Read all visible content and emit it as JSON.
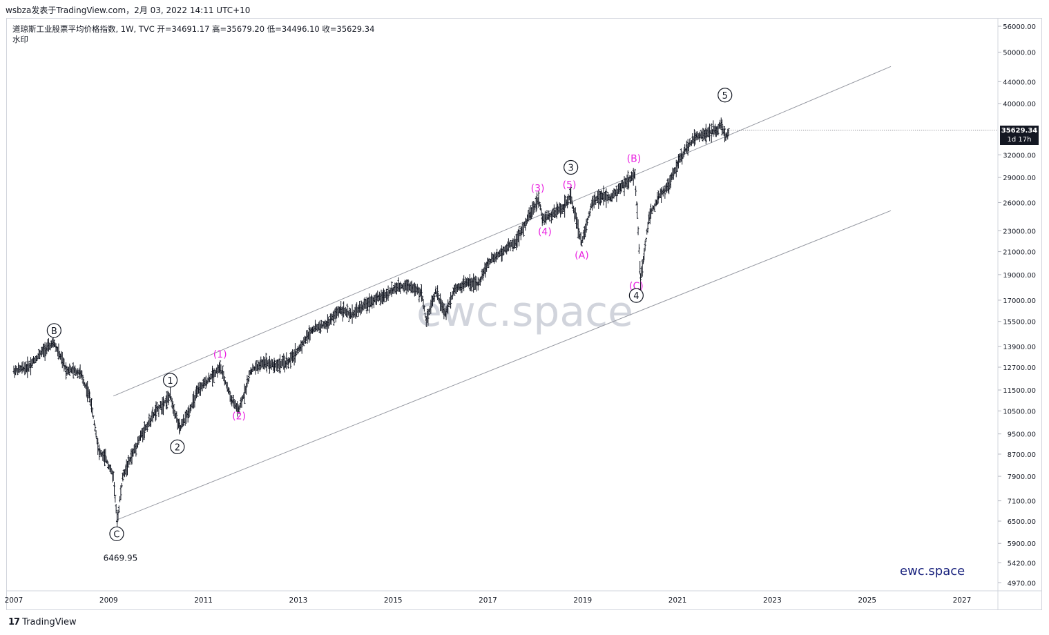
{
  "header": {
    "publish_line": "wsbza发表于TradingView.com，2月 03, 2022 14:11 UTC+10"
  },
  "legend": {
    "symbol_line": "道琼斯工业股票平均价格指数, 1W, TVC  开=34691.17  高=35679.20  低=34496.10  收=35629.34",
    "watermark_label": "水印"
  },
  "price_tag": {
    "price": "35629.34",
    "countdown": "1d 17h"
  },
  "brand": "ewc.space",
  "footer": {
    "logo": "17",
    "name": "TradingView"
  },
  "colors": {
    "candles": "#131722",
    "channel": "#9598a1",
    "magenta_labels": "#e91ee0",
    "black_labels": "#131722",
    "brand": "#1a237e",
    "watermark": "#d1d4dc"
  },
  "chart_data": {
    "type": "line",
    "title": "道琼斯工业股票平均价格指数",
    "xlabel": "",
    "ylabel": "",
    "y_scale": "log",
    "ylim": [
      4600,
      62000
    ],
    "x_ticks": [
      "2007",
      "2009",
      "2011",
      "2013",
      "2015",
      "2017",
      "2019",
      "2021",
      "2023",
      "2025",
      "2027"
    ],
    "y_ticks": [
      "56000.00",
      "50000.00",
      "44000.00",
      "40000.00",
      "32000.00",
      "29000.00",
      "26000.00",
      "23000.00",
      "21000.00",
      "19000.00",
      "17000.00",
      "15500.00",
      "13900.00",
      "12700.00",
      "11500.00",
      "10500.00",
      "9500.00",
      "8700.00",
      "7900.00",
      "7100.00",
      "6500.00",
      "5900.00",
      "5420.00",
      "4970.00"
    ],
    "watermark_text": "ewc.space",
    "series": [
      {
        "x": [
          2007.0,
          2007.3,
          2007.6,
          2007.85,
          2008.1,
          2008.4,
          2008.6,
          2008.8,
          2008.95,
          2009.1,
          2009.18,
          2009.3,
          2009.5,
          2009.7,
          2010.0,
          2010.3,
          2010.5,
          2010.7,
          2010.9,
          2011.2,
          2011.35,
          2011.6,
          2011.75,
          2012.0,
          2012.3,
          2012.5,
          2012.8,
          2013.0,
          2013.3,
          2013.6,
          2013.9,
          2014.1,
          2014.5,
          2014.8,
          2015.0,
          2015.3,
          2015.6,
          2015.7,
          2015.9,
          2016.1,
          2016.3,
          2016.6,
          2016.8,
          2017.0,
          2017.3,
          2017.6,
          2017.9,
          2018.07,
          2018.15,
          2018.3,
          2018.6,
          2018.75,
          2018.98,
          2019.2,
          2019.4,
          2019.6,
          2019.8,
          2020.1,
          2020.15,
          2020.22,
          2020.4,
          2020.6,
          2020.8,
          2021.0,
          2021.2,
          2021.4,
          2021.6,
          2021.8,
          2021.92,
          2022.02,
          2022.08
        ],
        "values": [
          12500,
          12700,
          13600,
          14100,
          12600,
          12400,
          11200,
          8800,
          8500,
          7900,
          6470,
          7900,
          8700,
          9500,
          10500,
          11200,
          9700,
          10500,
          11500,
          12300,
          12700,
          11000,
          10500,
          12500,
          13000,
          12800,
          13000,
          13700,
          15000,
          15300,
          16400,
          15900,
          16900,
          17300,
          17800,
          18200,
          17500,
          15600,
          17700,
          16000,
          17900,
          18400,
          18200,
          20000,
          21000,
          22000,
          24800,
          26400,
          24200,
          24500,
          25500,
          26700,
          21800,
          26000,
          26800,
          26500,
          27800,
          29300,
          25000,
          18600,
          24500,
          26600,
          27800,
          30800,
          33000,
          34800,
          35000,
          35600,
          36500,
          34500,
          35629
        ]
      }
    ],
    "annotations": [
      {
        "text": "B",
        "style": "circled",
        "x": 2007.85,
        "y": 14900
      },
      {
        "text": "C",
        "style": "circled",
        "x": 2009.17,
        "y": 6150
      },
      {
        "text": "6469.95",
        "style": "plain",
        "x": 2009.25,
        "y": 5550
      },
      {
        "text": "1",
        "style": "circled",
        "x": 2010.3,
        "y": 12000
      },
      {
        "text": "2",
        "style": "circled",
        "x": 2010.45,
        "y": 8980
      },
      {
        "text": "(1)",
        "style": "magenta",
        "x": 2011.35,
        "y": 13450
      },
      {
        "text": "(2)",
        "style": "magenta",
        "x": 2011.75,
        "y": 10280
      },
      {
        "text": "(3)",
        "style": "magenta",
        "x": 2018.05,
        "y": 27700
      },
      {
        "text": "(4)",
        "style": "magenta",
        "x": 2018.2,
        "y": 22900
      },
      {
        "text": "(5)",
        "style": "magenta",
        "x": 2018.72,
        "y": 28100
      },
      {
        "text": "3",
        "style": "circled",
        "x": 2018.75,
        "y": 30300
      },
      {
        "text": "(A)",
        "style": "magenta",
        "x": 2018.98,
        "y": 20700
      },
      {
        "text": "(B)",
        "style": "magenta",
        "x": 2020.08,
        "y": 31500
      },
      {
        "text": "(C)",
        "style": "magenta",
        "x": 2020.13,
        "y": 18100
      },
      {
        "text": "4",
        "style": "circled",
        "x": 2020.13,
        "y": 17350
      },
      {
        "text": "5",
        "style": "circled",
        "x": 2022.0,
        "y": 41500
      }
    ],
    "channel": [
      {
        "x1": 2009.1,
        "y1": 11200,
        "x2": 2025.5,
        "y2": 47000
      },
      {
        "x1": 2009.2,
        "y1": 6550,
        "x2": 2025.5,
        "y2": 25100
      }
    ]
  }
}
